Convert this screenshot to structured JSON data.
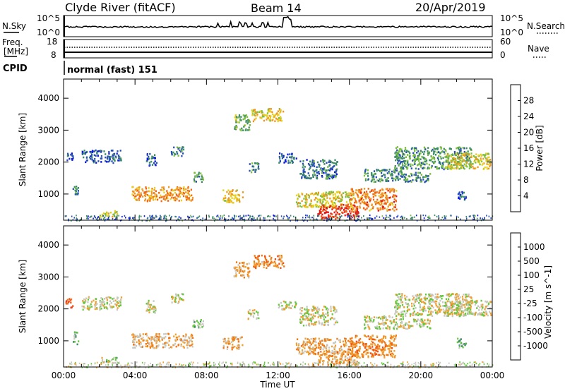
{
  "header": {
    "radar": "Clyde River (fitACF)",
    "beam": "Beam 14",
    "date": "20/Apr/2019"
  },
  "noise_panel": {
    "left_label": "N.Sky",
    "right_label": "N.Search",
    "left_ticks": [
      "10^5",
      "10^0"
    ],
    "right_ticks": [
      "10^5",
      "10^0"
    ]
  },
  "freq_panel": {
    "left_label_line1": "Freq.",
    "left_label_line2": "[MHz]",
    "right_label": "Nave",
    "left_ticks": [
      "18",
      "8"
    ],
    "right_ticks": [
      "60",
      "0"
    ]
  },
  "cpid": {
    "label": "CPID",
    "value": "normal (fast) 151"
  },
  "x_axis": {
    "label": "Time UT",
    "ticks": [
      "00:00",
      "04:00",
      "08:00",
      "12:00",
      "16:00",
      "20:00",
      "00:00"
    ]
  },
  "chart_data": [
    {
      "type": "heatmap",
      "name": "power",
      "ylabel": "Slant Range [km]",
      "xlabel": "Time UT",
      "x_range_hours": [
        0,
        24
      ],
      "y_range_km": [
        180,
        4600
      ],
      "y_ticks": [
        1000,
        2000,
        3000,
        4000
      ],
      "colorbar": {
        "label": "Power [dB]",
        "ticks": [
          "4",
          "8",
          "12",
          "16",
          "20",
          "24",
          "28"
        ],
        "colors": [
          "#0a14e6",
          "#2850b4",
          "#3c8c64",
          "#7cbf3c",
          "#e6d21e",
          "#f0961e",
          "#f06414",
          "#e61414"
        ]
      },
      "regions": [
        {
          "t": [
            0.1,
            0.5
          ],
          "r": [
            2050,
            2350
          ],
          "level": 0.15
        },
        {
          "t": [
            0.5,
            0.8
          ],
          "r": [
            900,
            1300
          ],
          "level": 0.3
        },
        {
          "t": [
            1.0,
            3.2
          ],
          "r": [
            2000,
            2400
          ],
          "level": 0.2
        },
        {
          "t": [
            2.0,
            3.0
          ],
          "r": [
            300,
            500
          ],
          "level": 0.55
        },
        {
          "t": [
            3.8,
            7.2
          ],
          "r": [
            800,
            1250
          ],
          "level": 0.72
        },
        {
          "t": [
            4.6,
            5.2
          ],
          "r": [
            1900,
            2300
          ],
          "level": 0.2
        },
        {
          "t": [
            6.0,
            6.7
          ],
          "r": [
            2200,
            2500
          ],
          "level": 0.3
        },
        {
          "t": [
            7.2,
            7.8
          ],
          "r": [
            1400,
            1700
          ],
          "level": 0.35
        },
        {
          "t": [
            8.9,
            10.0
          ],
          "r": [
            750,
            1150
          ],
          "level": 0.6
        },
        {
          "t": [
            9.5,
            10.4
          ],
          "r": [
            3000,
            3500
          ],
          "level": 0.4
        },
        {
          "t": [
            10.3,
            10.9
          ],
          "r": [
            1700,
            2000
          ],
          "level": 0.3
        },
        {
          "t": [
            10.5,
            12.3
          ],
          "r": [
            3300,
            3700
          ],
          "level": 0.6
        },
        {
          "t": [
            12.0,
            13.0
          ],
          "r": [
            2000,
            2300
          ],
          "level": 0.2
        },
        {
          "t": [
            13.2,
            15.3
          ],
          "r": [
            1500,
            2100
          ],
          "level": 0.25
        },
        {
          "t": [
            13.0,
            16.2
          ],
          "r": [
            600,
            1100
          ],
          "level": 0.55
        },
        {
          "t": [
            14.2,
            16.5
          ],
          "r": [
            250,
            700
          ],
          "level": 0.92
        },
        {
          "t": [
            16.0,
            18.6
          ],
          "r": [
            500,
            1200
          ],
          "level": 0.75
        },
        {
          "t": [
            16.8,
            19.0
          ],
          "r": [
            1400,
            1800
          ],
          "level": 0.3
        },
        {
          "t": [
            18.5,
            22.8
          ],
          "r": [
            1800,
            2500
          ],
          "level": 0.35
        },
        {
          "t": [
            19.0,
            20.5
          ],
          "r": [
            1400,
            1700
          ],
          "level": 0.3
        },
        {
          "t": [
            21.3,
            23.9
          ],
          "r": [
            1800,
            2300
          ],
          "level": 0.55
        },
        {
          "t": [
            22.0,
            22.5
          ],
          "r": [
            800,
            1100
          ],
          "level": 0.2
        }
      ]
    },
    {
      "type": "heatmap",
      "name": "velocity",
      "ylabel": "Slant Range [km]",
      "xlabel": "Time UT",
      "x_range_hours": [
        0,
        24
      ],
      "y_range_km": [
        180,
        4600
      ],
      "y_ticks": [
        1000,
        2000,
        3000,
        4000
      ],
      "colorbar": {
        "label": "Velocity [m s^-1]",
        "ticks": [
          "1000",
          "500",
          "100",
          "25",
          "-25",
          "-100",
          "-500",
          "-1000"
        ],
        "colors": [
          "#1e32c8",
          "#2d6eaa",
          "#3c8c64",
          "#64c83c",
          "#c8c8c0",
          "#f0a030",
          "#f07814",
          "#f05014",
          "#e61414"
        ]
      },
      "regions": [
        {
          "t": [
            0.1,
            0.5
          ],
          "r": [
            2050,
            2350
          ],
          "level": 0.82
        },
        {
          "t": [
            0.5,
            0.8
          ],
          "r": [
            900,
            1300
          ],
          "level": 0.4
        },
        {
          "t": [
            1.0,
            3.2
          ],
          "r": [
            2000,
            2400
          ],
          "level": 0.5
        },
        {
          "t": [
            2.0,
            3.0
          ],
          "r": [
            300,
            500
          ],
          "level": 0.45
        },
        {
          "t": [
            3.8,
            7.2
          ],
          "r": [
            800,
            1250
          ],
          "level": 0.6
        },
        {
          "t": [
            4.6,
            5.2
          ],
          "r": [
            1900,
            2300
          ],
          "level": 0.5
        },
        {
          "t": [
            6.0,
            6.7
          ],
          "r": [
            2200,
            2500
          ],
          "level": 0.5
        },
        {
          "t": [
            7.2,
            7.8
          ],
          "r": [
            1400,
            1700
          ],
          "level": 0.4
        },
        {
          "t": [
            8.9,
            10.0
          ],
          "r": [
            750,
            1150
          ],
          "level": 0.62
        },
        {
          "t": [
            9.5,
            10.4
          ],
          "r": [
            3000,
            3500
          ],
          "level": 0.62
        },
        {
          "t": [
            10.3,
            10.9
          ],
          "r": [
            1700,
            2000
          ],
          "level": 0.5
        },
        {
          "t": [
            10.5,
            12.3
          ],
          "r": [
            3300,
            3700
          ],
          "level": 0.68
        },
        {
          "t": [
            12.0,
            13.0
          ],
          "r": [
            2000,
            2300
          ],
          "level": 0.5
        },
        {
          "t": [
            13.2,
            15.3
          ],
          "r": [
            1500,
            2100
          ],
          "level": 0.5
        },
        {
          "t": [
            13.0,
            16.2
          ],
          "r": [
            600,
            1100
          ],
          "level": 0.62
        },
        {
          "t": [
            14.2,
            16.5
          ],
          "r": [
            250,
            700
          ],
          "level": 0.66
        },
        {
          "t": [
            16.0,
            18.6
          ],
          "r": [
            500,
            1200
          ],
          "level": 0.7
        },
        {
          "t": [
            16.8,
            19.0
          ],
          "r": [
            1400,
            1800
          ],
          "level": 0.5
        },
        {
          "t": [
            18.5,
            22.8
          ],
          "r": [
            1800,
            2500
          ],
          "level": 0.5
        },
        {
          "t": [
            19.0,
            20.5
          ],
          "r": [
            1400,
            1700
          ],
          "level": 0.5
        },
        {
          "t": [
            21.3,
            23.9
          ],
          "r": [
            1800,
            2300
          ],
          "level": 0.52
        },
        {
          "t": [
            22.0,
            22.5
          ],
          "r": [
            800,
            1100
          ],
          "level": 0.35
        }
      ]
    }
  ]
}
